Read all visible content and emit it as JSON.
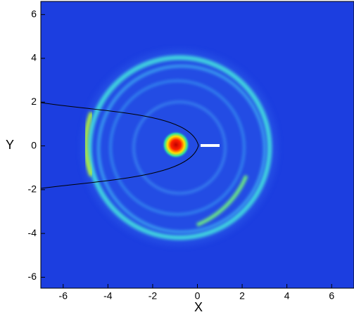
{
  "chart_data": {
    "type": "contour",
    "xlabel": "X",
    "ylabel": "Y",
    "xlim": [
      -7,
      7
    ],
    "ylim": [
      -6.5,
      6.6
    ],
    "xticks": [
      -6,
      -4,
      -2,
      0,
      2,
      4,
      6
    ],
    "yticks": [
      -6,
      -4,
      -2,
      0,
      2,
      4,
      6
    ]
  }
}
